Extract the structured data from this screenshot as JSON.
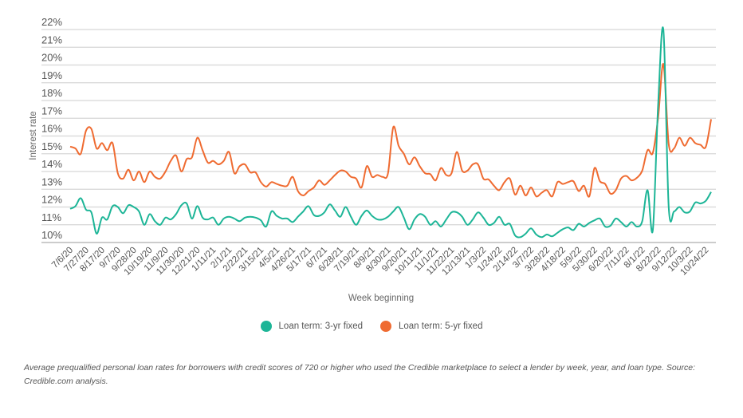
{
  "chart_data": {
    "type": "line",
    "xlabel": "Week beginning",
    "ylabel": "Interest rate",
    "ylim": [
      10,
      22
    ],
    "y_ticks": [
      "10%",
      "11%",
      "12%",
      "13%",
      "14%",
      "15%",
      "16%",
      "17%",
      "18%",
      "19%",
      "20%",
      "21%",
      "22%"
    ],
    "x_tick_labels": [
      "7/6/20",
      "7/27/20",
      "8/17/20",
      "9/7/20",
      "9/28/20",
      "10/19/20",
      "11/9/20",
      "11/30/20",
      "12/21/20",
      "1/11/21",
      "2/1/21",
      "2/22/21",
      "3/15/21",
      "4/5/21",
      "4/26/21",
      "5/17/21",
      "6/7/21",
      "6/28/21",
      "7/19/21",
      "8/9/21",
      "8/30/21",
      "9/20/21",
      "10/11/21",
      "11/1/21",
      "11/22/21",
      "12/13/21",
      "1/3/22",
      "1/24/22",
      "2/14/22",
      "3/7/22",
      "3/28/22",
      "4/18/22",
      "5/9/22",
      "5/30/22",
      "6/20/22",
      "7/11/22",
      "8/1/22",
      "8/22/22",
      "9/12/22",
      "10/3/22",
      "10/24/22"
    ],
    "x_interval": "weekly",
    "grid": true,
    "legend_position": "bottom",
    "series": [
      {
        "name": "Loan term: 3-yr fixed",
        "color": "#1db597",
        "values": [
          11.9,
          12.05,
          12.5,
          11.85,
          11.7,
          10.5,
          11.4,
          11.3,
          12.05,
          12.0,
          11.65,
          12.1,
          12.0,
          11.75,
          11.0,
          11.6,
          11.2,
          11.0,
          11.4,
          11.3,
          11.6,
          12.1,
          12.2,
          11.35,
          12.05,
          11.4,
          11.3,
          11.4,
          11.0,
          11.35,
          11.45,
          11.35,
          11.2,
          11.4,
          11.45,
          11.4,
          11.25,
          10.9,
          11.75,
          11.5,
          11.35,
          11.35,
          11.15,
          11.45,
          11.75,
          12.05,
          11.55,
          11.5,
          11.7,
          12.15,
          11.8,
          11.45,
          12.0,
          11.45,
          11.0,
          11.5,
          11.8,
          11.5,
          11.3,
          11.3,
          11.45,
          11.75,
          12.0,
          11.4,
          10.75,
          11.3,
          11.6,
          11.45,
          11.0,
          11.2,
          10.9,
          11.3,
          11.7,
          11.7,
          11.45,
          11.0,
          11.3,
          11.7,
          11.4,
          11.0,
          11.1,
          11.45,
          11.0,
          11.05,
          10.4,
          10.3,
          10.5,
          10.8,
          10.45,
          10.3,
          10.45,
          10.35,
          10.55,
          10.75,
          10.85,
          10.7,
          11.05,
          10.9,
          11.1,
          11.25,
          11.35,
          10.9,
          10.95,
          11.35,
          11.15,
          10.9,
          11.15,
          10.9,
          11.2,
          12.95,
          10.7,
          17.8,
          21.95,
          12.0,
          11.75,
          12.0,
          11.7,
          11.75,
          12.25,
          12.2,
          12.35,
          12.85
        ]
      },
      {
        "name": "Loan term: 5-yr fixed",
        "color": "#ef6b31",
        "values": [
          15.4,
          15.3,
          15.0,
          16.3,
          16.4,
          15.3,
          15.6,
          15.2,
          15.6,
          13.9,
          13.6,
          14.1,
          13.5,
          14.0,
          13.4,
          14.0,
          13.7,
          13.6,
          14.0,
          14.6,
          14.9,
          14.0,
          14.7,
          14.8,
          15.9,
          15.2,
          14.5,
          14.6,
          14.4,
          14.6,
          15.1,
          13.9,
          14.3,
          14.4,
          13.95,
          13.95,
          13.4,
          13.15,
          13.4,
          13.3,
          13.2,
          13.2,
          13.7,
          12.9,
          12.65,
          12.9,
          13.1,
          13.5,
          13.25,
          13.5,
          13.8,
          14.05,
          14.0,
          13.7,
          13.6,
          13.1,
          14.3,
          13.7,
          13.8,
          13.7,
          13.9,
          16.5,
          15.45,
          15.0,
          14.4,
          14.8,
          14.3,
          13.9,
          13.85,
          13.5,
          14.2,
          13.8,
          13.9,
          15.1,
          14.05,
          14.05,
          14.4,
          14.4,
          13.6,
          13.55,
          13.2,
          12.95,
          13.4,
          13.6,
          12.7,
          13.2,
          12.65,
          13.1,
          12.6,
          12.8,
          12.95,
          12.6,
          13.4,
          13.3,
          13.4,
          13.45,
          12.9,
          13.2,
          12.6,
          14.2,
          13.45,
          13.3,
          12.75,
          12.95,
          13.6,
          13.75,
          13.5,
          13.65,
          14.05,
          15.2,
          15.05,
          17.05,
          20.05,
          15.55,
          15.3,
          15.9,
          15.45,
          15.9,
          15.6,
          15.5,
          15.4,
          16.95
        ]
      }
    ]
  },
  "caption": "Average prequalified personal loan rates for borrowers with credit scores of 720 or higher who used the Credible marketplace to select a lender by week, year, and loan type. Source: Credible.com analysis."
}
